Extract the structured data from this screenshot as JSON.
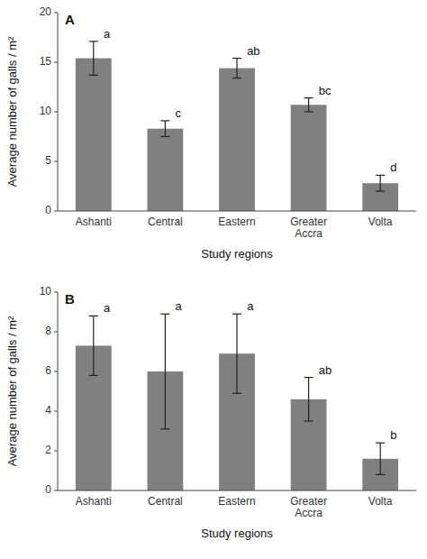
{
  "chart_data": [
    {
      "type": "bar",
      "title": "A",
      "categories": [
        "Ashanti",
        "Central",
        "Eastern",
        "Greater\nAccra",
        "Volta"
      ],
      "values": [
        15.4,
        8.3,
        14.4,
        10.7,
        2.8
      ],
      "errors": [
        1.7,
        0.8,
        1.0,
        0.7,
        0.8
      ],
      "annotations": [
        "a",
        "c",
        "ab",
        "bc",
        "d"
      ],
      "ylabel": "Average number of galls / m²",
      "xlabel": "Study regions",
      "ylim": [
        0,
        20
      ],
      "yticks": [
        0,
        5,
        10,
        15,
        20
      ],
      "color": "#808080",
      "grid": false
    },
    {
      "type": "bar",
      "title": "B",
      "categories": [
        "Ashanti",
        "Central",
        "Eastern",
        "Greater\nAccra",
        "Volta"
      ],
      "values": [
        7.3,
        6.0,
        6.9,
        4.6,
        1.6
      ],
      "errors": [
        1.5,
        2.9,
        2.0,
        1.1,
        0.8
      ],
      "annotations": [
        "a",
        "a",
        "a",
        "ab",
        "b"
      ],
      "ylabel": "Average number of galls / m²",
      "xlabel": "Study regions",
      "ylim": [
        0,
        10
      ],
      "yticks": [
        0,
        2,
        4,
        6,
        8,
        10
      ],
      "color": "#808080",
      "grid": false
    }
  ]
}
